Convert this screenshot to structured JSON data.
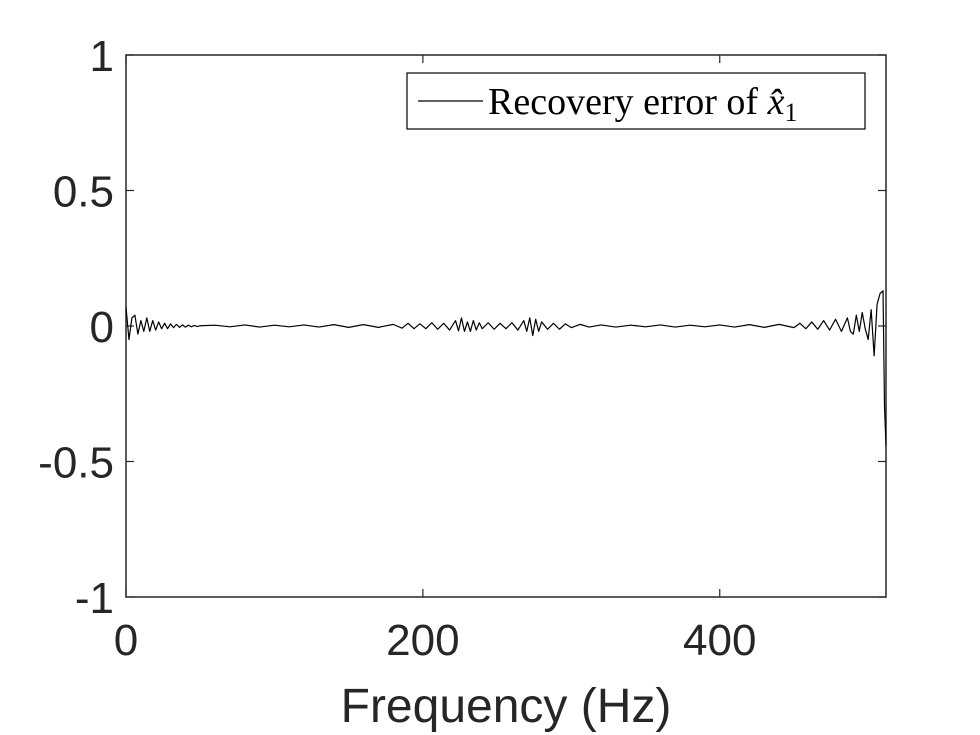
{
  "chart_data": {
    "type": "line",
    "title": "",
    "xlabel": "Frequency (Hz)",
    "ylabel": "",
    "xlim": [
      0,
      512
    ],
    "ylim": [
      -1,
      1
    ],
    "xticks": [
      0,
      200,
      400
    ],
    "xtick_labels": [
      "0",
      "200",
      "400"
    ],
    "yticks": [
      1,
      0.5,
      0,
      -0.5,
      -1
    ],
    "ytick_labels": [
      "1",
      "0.5",
      "0",
      "-0.5",
      "-1"
    ],
    "grid": false,
    "legend_position": "top-right",
    "series": [
      {
        "name": "Recovery error of x̂1",
        "legend_main": "Recovery error of ",
        "legend_var": "x̂",
        "legend_sub": "1",
        "color": "#000000",
        "x": [
          0,
          2,
          4,
          6,
          8,
          10,
          12,
          14,
          16,
          18,
          20,
          22,
          24,
          26,
          28,
          30,
          32,
          34,
          36,
          38,
          40,
          42,
          44,
          46,
          48,
          50,
          60,
          70,
          80,
          90,
          100,
          110,
          120,
          130,
          140,
          150,
          160,
          170,
          180,
          186,
          190,
          194,
          198,
          202,
          206,
          210,
          214,
          218,
          222,
          224,
          226,
          228,
          230,
          232,
          234,
          236,
          238,
          240,
          244,
          248,
          252,
          256,
          260,
          264,
          268,
          270,
          272,
          274,
          276,
          278,
          280,
          284,
          288,
          292,
          296,
          300,
          306,
          312,
          320,
          330,
          340,
          350,
          360,
          370,
          380,
          390,
          400,
          410,
          420,
          430,
          440,
          450,
          454,
          458,
          462,
          466,
          470,
          474,
          478,
          482,
          486,
          488,
          490,
          492,
          494,
          496,
          498,
          500,
          502,
          504,
          506,
          508,
          510,
          511,
          512
        ],
        "y": [
          0.07,
          -0.05,
          0.03,
          0.04,
          -0.03,
          0.02,
          -0.02,
          0.03,
          -0.02,
          0.02,
          -0.015,
          0.015,
          -0.01,
          0.01,
          -0.01,
          0.008,
          -0.006,
          0.006,
          -0.005,
          0.004,
          -0.004,
          0.003,
          -0.003,
          0.002,
          -0.002,
          0.001,
          0.003,
          -0.003,
          0.004,
          -0.004,
          0.003,
          -0.003,
          0.004,
          -0.004,
          0.005,
          -0.005,
          0.005,
          -0.005,
          0.006,
          -0.008,
          0.01,
          -0.01,
          0.008,
          -0.01,
          0.012,
          -0.012,
          0.01,
          -0.015,
          0.02,
          -0.018,
          0.03,
          -0.02,
          0.015,
          -0.02,
          0.02,
          -0.015,
          0.012,
          -0.01,
          0.012,
          -0.012,
          0.01,
          -0.01,
          0.012,
          -0.015,
          0.02,
          -0.02,
          0.03,
          -0.035,
          0.025,
          -0.02,
          0.015,
          -0.012,
          0.01,
          -0.012,
          0.008,
          -0.006,
          0.006,
          -0.004,
          0.004,
          -0.004,
          0.003,
          -0.003,
          0.004,
          -0.004,
          0.003,
          -0.003,
          0.004,
          -0.004,
          0.005,
          -0.005,
          0.006,
          -0.006,
          0.01,
          -0.01,
          0.015,
          -0.012,
          0.02,
          -0.015,
          0.025,
          -0.02,
          0.03,
          -0.02,
          -0.03,
          0.04,
          -0.02,
          0.05,
          -0.01,
          -0.05,
          0.06,
          -0.11,
          0.08,
          0.12,
          0.13,
          -0.3,
          -0.44
        ]
      }
    ]
  }
}
